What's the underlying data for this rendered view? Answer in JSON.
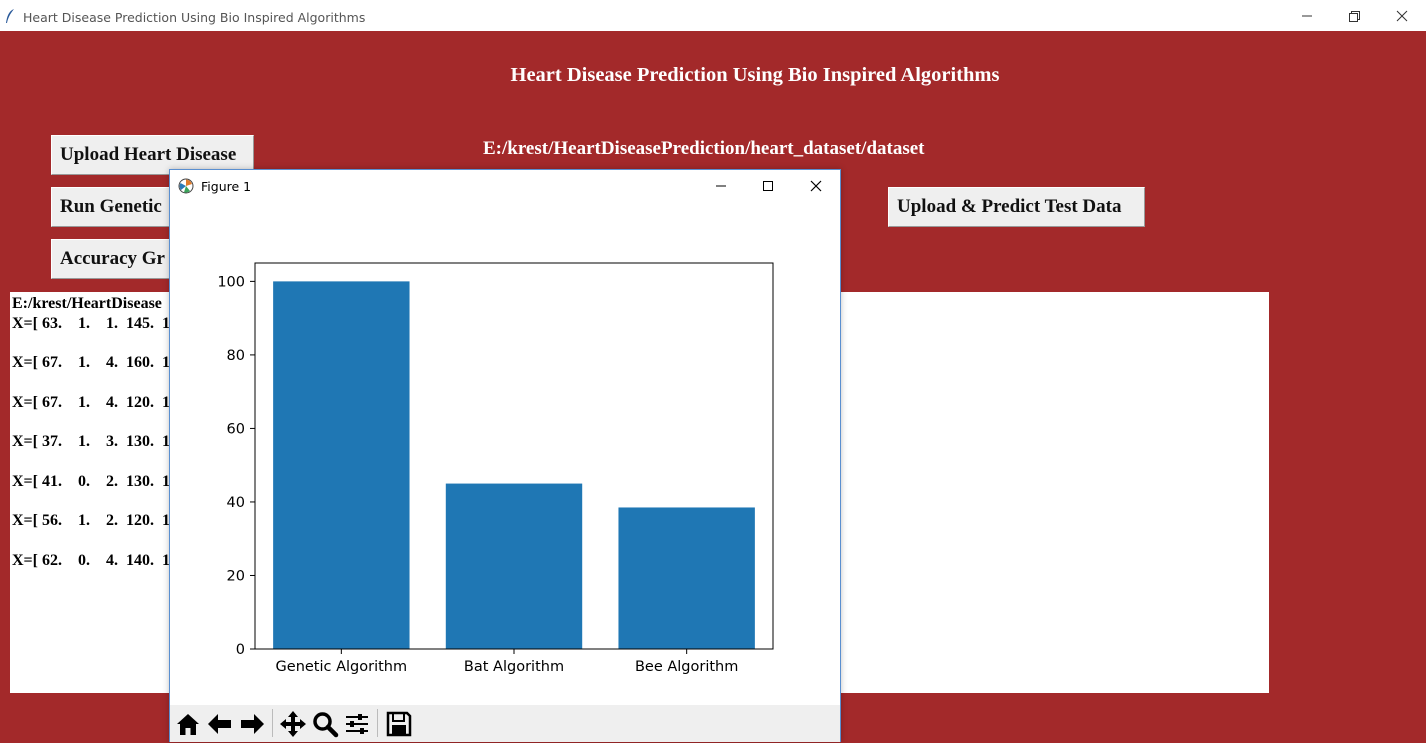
{
  "window": {
    "title": "Heart Disease Prediction Using Bio Inspired Algorithms"
  },
  "main": {
    "heading": "Heart Disease Prediction Using Bio Inspired Algorithms",
    "path_label": "E:/krest/HeartDiseasePrediction/heart_dataset/dataset",
    "buttons": {
      "upload": "Upload Heart Disease",
      "run": "Run Genetic",
      "accuracy": "Accuracy Gr",
      "predict": "Upload & Predict Test Data"
    },
    "output_lines": [
      "E:/krest/HeartDisease",
      "X=[ 63.    1.    1.  145.  1",
      "X=[ 67.    1.    4.  160.  1",
      "X=[ 67.    1.    4.  120.  1",
      "X=[ 37.    1.    3.  130.  1",
      "X=[ 41.    0.    2.  130.  1",
      "X=[ 56.    1.    2.  120.  1",
      "X=[ 62.    0.    4.  140.  1"
    ]
  },
  "figure": {
    "title": "Figure 1",
    "toolbar": [
      "home-icon",
      "back-icon",
      "forward-icon",
      "pan-icon",
      "zoom-icon",
      "configure-icon",
      "save-icon"
    ]
  },
  "chart_data": {
    "type": "bar",
    "categories": [
      "Genetic Algorithm",
      "Bat Algorithm",
      "Bee Algorithm"
    ],
    "values": [
      100,
      45,
      38.5
    ],
    "ylim": [
      0,
      105
    ],
    "yticks": [
      0,
      20,
      40,
      60,
      80,
      100
    ],
    "bar_color": "#1f77b4",
    "grid": false,
    "legend": "none"
  },
  "colors": {
    "background": "#a3292a",
    "button": "#efefef"
  }
}
